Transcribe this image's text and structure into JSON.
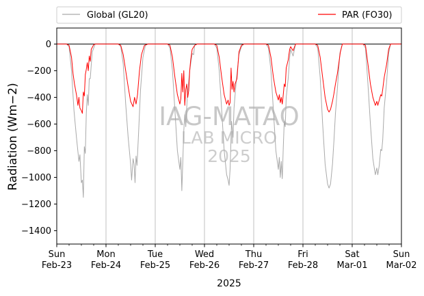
{
  "chart_data": {
    "type": "line",
    "title": "",
    "xlabel": "2025",
    "ylabel": "Radiation (Wm−2)",
    "ylim": [
      -1500,
      120
    ],
    "yticks": [
      0,
      -200,
      -400,
      -600,
      -800,
      -1000,
      -1200,
      -1400
    ],
    "xlim": [
      0,
      7
    ],
    "x_ticks": [
      {
        "day": "Sun",
        "date": "Feb-23"
      },
      {
        "day": "Mon",
        "date": "Feb-24"
      },
      {
        "day": "Tue",
        "date": "Feb-25"
      },
      {
        "day": "Wed",
        "date": "Feb-26"
      },
      {
        "day": "Thu",
        "date": "Feb-27"
      },
      {
        "day": "Fri",
        "date": "Feb-28"
      },
      {
        "day": "Sat",
        "date": "Mar-01"
      },
      {
        "day": "Sun",
        "date": "Mar-02"
      }
    ],
    "grid": "vertical",
    "legend_position": "top",
    "zero_line": true,
    "watermark": [
      "IAG-MATAO",
      "LAB MICRO",
      "2025"
    ],
    "series": [
      {
        "name": "Global (GL20)",
        "color": "#a9a9a9",
        "points": [
          [
            0,
            0
          ],
          [
            0.2,
            0
          ],
          [
            0.25,
            -20
          ],
          [
            0.3,
            -200
          ],
          [
            0.35,
            -500
          ],
          [
            0.4,
            -700
          ],
          [
            0.45,
            -880
          ],
          [
            0.47,
            -830
          ],
          [
            0.5,
            -1040
          ],
          [
            0.52,
            -1020
          ],
          [
            0.54,
            -1150
          ],
          [
            0.56,
            -770
          ],
          [
            0.58,
            -820
          ],
          [
            0.6,
            -520
          ],
          [
            0.62,
            -380
          ],
          [
            0.64,
            -460
          ],
          [
            0.66,
            -260
          ],
          [
            0.68,
            -260
          ],
          [
            0.72,
            -60
          ],
          [
            0.78,
            0
          ],
          [
            1.25,
            0
          ],
          [
            1.25,
            0
          ],
          [
            1.3,
            -20
          ],
          [
            1.35,
            -150
          ],
          [
            1.4,
            -450
          ],
          [
            1.45,
            -700
          ],
          [
            1.5,
            -900
          ],
          [
            1.52,
            -1020
          ],
          [
            1.55,
            -860
          ],
          [
            1.57,
            -900
          ],
          [
            1.59,
            -1040
          ],
          [
            1.61,
            -840
          ],
          [
            1.63,
            -910
          ],
          [
            1.66,
            -680
          ],
          [
            1.7,
            -350
          ],
          [
            1.75,
            -100
          ],
          [
            1.8,
            -10
          ],
          [
            1.85,
            0
          ],
          [
            2.25,
            0
          ],
          [
            2.25,
            0
          ],
          [
            2.3,
            -30
          ],
          [
            2.35,
            -200
          ],
          [
            2.4,
            -500
          ],
          [
            2.45,
            -800
          ],
          [
            2.5,
            -940
          ],
          [
            2.52,
            -850
          ],
          [
            2.54,
            -1100
          ],
          [
            2.56,
            -880
          ],
          [
            2.58,
            -650
          ],
          [
            2.6,
            -530
          ],
          [
            2.62,
            -620
          ],
          [
            2.65,
            -400
          ],
          [
            2.7,
            -200
          ],
          [
            2.75,
            -70
          ],
          [
            2.78,
            -80
          ],
          [
            2.8,
            -10
          ],
          [
            2.85,
            0
          ],
          [
            3.2,
            0
          ],
          [
            3.2,
            0
          ],
          [
            3.25,
            -30
          ],
          [
            3.3,
            -200
          ],
          [
            3.35,
            -500
          ],
          [
            3.4,
            -800
          ],
          [
            3.45,
            -980
          ],
          [
            3.48,
            -1020
          ],
          [
            3.5,
            -1060
          ],
          [
            3.52,
            -940
          ],
          [
            3.55,
            -580
          ],
          [
            3.58,
            -700
          ],
          [
            3.6,
            -480
          ],
          [
            3.62,
            -390
          ],
          [
            3.65,
            -260
          ],
          [
            3.7,
            -80
          ],
          [
            3.75,
            -20
          ],
          [
            3.8,
            0
          ],
          [
            4.25,
            0
          ],
          [
            4.25,
            0
          ],
          [
            4.3,
            -30
          ],
          [
            4.35,
            -200
          ],
          [
            4.4,
            -500
          ],
          [
            4.45,
            -800
          ],
          [
            4.5,
            -940
          ],
          [
            4.52,
            -850
          ],
          [
            4.54,
            -1000
          ],
          [
            4.56,
            -880
          ],
          [
            4.58,
            -1010
          ],
          [
            4.6,
            -780
          ],
          [
            4.62,
            -580
          ],
          [
            4.64,
            -620
          ],
          [
            4.66,
            -400
          ],
          [
            4.7,
            -260
          ],
          [
            4.73,
            -100
          ],
          [
            4.75,
            -40
          ],
          [
            4.8,
            -90
          ],
          [
            4.85,
            0
          ],
          [
            5.25,
            0
          ],
          [
            5.25,
            0
          ],
          [
            5.3,
            -30
          ],
          [
            5.35,
            -250
          ],
          [
            5.4,
            -600
          ],
          [
            5.45,
            -900
          ],
          [
            5.5,
            -1050
          ],
          [
            5.53,
            -1080
          ],
          [
            5.56,
            -1050
          ],
          [
            5.6,
            -900
          ],
          [
            5.63,
            -720
          ],
          [
            5.66,
            -520
          ],
          [
            5.7,
            -330
          ],
          [
            5.73,
            -170
          ],
          [
            5.75,
            -70
          ],
          [
            5.8,
            0
          ],
          [
            6.22,
            0
          ],
          [
            6.22,
            0
          ],
          [
            6.27,
            -30
          ],
          [
            6.32,
            -300
          ],
          [
            6.37,
            -600
          ],
          [
            6.42,
            -860
          ],
          [
            6.47,
            -980
          ],
          [
            6.5,
            -930
          ],
          [
            6.52,
            -980
          ],
          [
            6.55,
            -910
          ],
          [
            6.58,
            -790
          ],
          [
            6.6,
            -800
          ],
          [
            6.62,
            -720
          ],
          [
            6.65,
            -480
          ],
          [
            6.7,
            -280
          ],
          [
            6.74,
            -70
          ],
          [
            6.78,
            0
          ],
          [
            7,
            0
          ]
        ]
      },
      {
        "name": "PAR (FO30)",
        "color": "#ff0000",
        "points": [
          [
            0,
            0
          ],
          [
            0.2,
            0
          ],
          [
            0.25,
            -10
          ],
          [
            0.3,
            -100
          ],
          [
            0.33,
            -220
          ],
          [
            0.36,
            -300
          ],
          [
            0.4,
            -380
          ],
          [
            0.43,
            -460
          ],
          [
            0.45,
            -400
          ],
          [
            0.47,
            -480
          ],
          [
            0.5,
            -500
          ],
          [
            0.52,
            -520
          ],
          [
            0.54,
            -360
          ],
          [
            0.56,
            -390
          ],
          [
            0.58,
            -230
          ],
          [
            0.6,
            -190
          ],
          [
            0.62,
            -140
          ],
          [
            0.64,
            -200
          ],
          [
            0.66,
            -90
          ],
          [
            0.68,
            -130
          ],
          [
            0.7,
            -40
          ],
          [
            0.75,
            -5
          ],
          [
            0.78,
            0
          ],
          [
            1.25,
            0
          ],
          [
            1.25,
            0
          ],
          [
            1.3,
            -10
          ],
          [
            1.35,
            -80
          ],
          [
            1.4,
            -200
          ],
          [
            1.45,
            -320
          ],
          [
            1.5,
            -430
          ],
          [
            1.55,
            -470
          ],
          [
            1.58,
            -400
          ],
          [
            1.61,
            -450
          ],
          [
            1.64,
            -380
          ],
          [
            1.68,
            -200
          ],
          [
            1.72,
            -80
          ],
          [
            1.78,
            -10
          ],
          [
            1.85,
            0
          ],
          [
            2.25,
            0
          ],
          [
            2.25,
            0
          ],
          [
            2.3,
            -10
          ],
          [
            2.35,
            -100
          ],
          [
            2.4,
            -250
          ],
          [
            2.45,
            -380
          ],
          [
            2.5,
            -450
          ],
          [
            2.52,
            -410
          ],
          [
            2.54,
            -220
          ],
          [
            2.56,
            -360
          ],
          [
            2.58,
            -200
          ],
          [
            2.6,
            -460
          ],
          [
            2.62,
            -340
          ],
          [
            2.64,
            -300
          ],
          [
            2.66,
            -400
          ],
          [
            2.68,
            -350
          ],
          [
            2.7,
            -200
          ],
          [
            2.72,
            -120
          ],
          [
            2.75,
            -40
          ],
          [
            2.8,
            -10
          ],
          [
            2.85,
            0
          ],
          [
            3.2,
            0
          ],
          [
            3.2,
            0
          ],
          [
            3.25,
            -10
          ],
          [
            3.3,
            -100
          ],
          [
            3.35,
            -250
          ],
          [
            3.4,
            -380
          ],
          [
            3.45,
            -450
          ],
          [
            3.48,
            -420
          ],
          [
            3.5,
            -460
          ],
          [
            3.52,
            -440
          ],
          [
            3.54,
            -180
          ],
          [
            3.56,
            -340
          ],
          [
            3.58,
            -280
          ],
          [
            3.6,
            -360
          ],
          [
            3.62,
            -300
          ],
          [
            3.64,
            -280
          ],
          [
            3.66,
            -260
          ],
          [
            3.7,
            -60
          ],
          [
            3.75,
            -10
          ],
          [
            3.8,
            0
          ],
          [
            4.25,
            0
          ],
          [
            4.25,
            0
          ],
          [
            4.3,
            -10
          ],
          [
            4.35,
            -100
          ],
          [
            4.4,
            -250
          ],
          [
            4.45,
            -360
          ],
          [
            4.5,
            -420
          ],
          [
            4.52,
            -380
          ],
          [
            4.54,
            -440
          ],
          [
            4.56,
            -400
          ],
          [
            4.58,
            -450
          ],
          [
            4.6,
            -380
          ],
          [
            4.62,
            -300
          ],
          [
            4.64,
            -320
          ],
          [
            4.66,
            -180
          ],
          [
            4.7,
            -120
          ],
          [
            4.73,
            -40
          ],
          [
            4.75,
            -20
          ],
          [
            4.8,
            -50
          ],
          [
            4.85,
            0
          ],
          [
            5.25,
            0
          ],
          [
            5.25,
            0
          ],
          [
            5.3,
            -10
          ],
          [
            5.35,
            -100
          ],
          [
            5.4,
            -250
          ],
          [
            5.45,
            -400
          ],
          [
            5.5,
            -490
          ],
          [
            5.53,
            -510
          ],
          [
            5.56,
            -490
          ],
          [
            5.6,
            -430
          ],
          [
            5.63,
            -370
          ],
          [
            5.66,
            -300
          ],
          [
            5.7,
            -220
          ],
          [
            5.73,
            -140
          ],
          [
            5.76,
            -60
          ],
          [
            5.8,
            0
          ],
          [
            6.22,
            0
          ],
          [
            6.22,
            0
          ],
          [
            6.27,
            -10
          ],
          [
            6.32,
            -150
          ],
          [
            6.37,
            -300
          ],
          [
            6.42,
            -400
          ],
          [
            6.47,
            -460
          ],
          [
            6.5,
            -430
          ],
          [
            6.52,
            -460
          ],
          [
            6.55,
            -420
          ],
          [
            6.58,
            -380
          ],
          [
            6.6,
            -390
          ],
          [
            6.62,
            -340
          ],
          [
            6.65,
            -250
          ],
          [
            6.7,
            -150
          ],
          [
            6.74,
            -40
          ],
          [
            6.78,
            0
          ],
          [
            7,
            0
          ]
        ]
      }
    ]
  }
}
